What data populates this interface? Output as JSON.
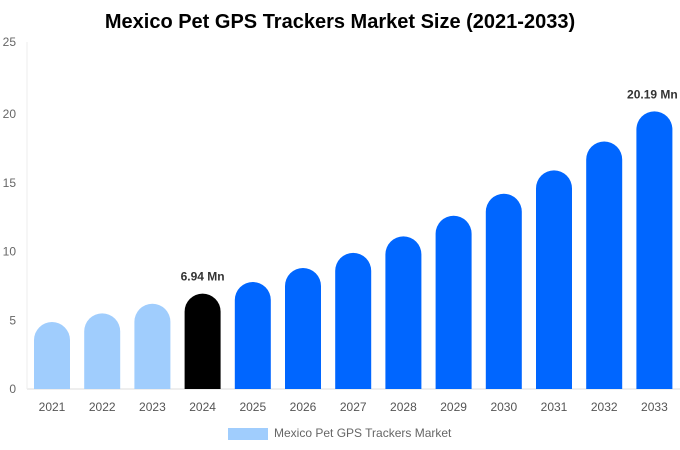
{
  "chart_data": {
    "type": "bar",
    "title": "Mexico Pet GPS Trackers Market Size (2021-2033)",
    "categories": [
      "2021",
      "2022",
      "2023",
      "2024",
      "2025",
      "2026",
      "2027",
      "2028",
      "2029",
      "2030",
      "2031",
      "2032",
      "2033"
    ],
    "values": [
      4.87,
      5.5,
      6.2,
      6.94,
      7.78,
      8.8,
      9.9,
      11.1,
      12.6,
      14.2,
      15.9,
      18.0,
      20.19
    ],
    "bar_colors": [
      "#a0cdfd",
      "#a0cdfd",
      "#a0cdfd",
      "#000000",
      "#0066ff",
      "#0066ff",
      "#0066ff",
      "#0066ff",
      "#0066ff",
      "#0066ff",
      "#0066ff",
      "#0066ff",
      "#0066ff"
    ],
    "data_labels": {
      "3": "6.94 Mn",
      "12": "20.19 Mn"
    },
    "yticks": [
      "0",
      "5",
      "10",
      "15",
      "20",
      "25"
    ],
    "ylim": [
      0,
      25
    ],
    "xlabel": "",
    "ylabel": "",
    "legend": {
      "label": "Mexico Pet GPS Trackers Market",
      "color": "#a0cdfd",
      "position": "bottom"
    },
    "grid": false
  }
}
